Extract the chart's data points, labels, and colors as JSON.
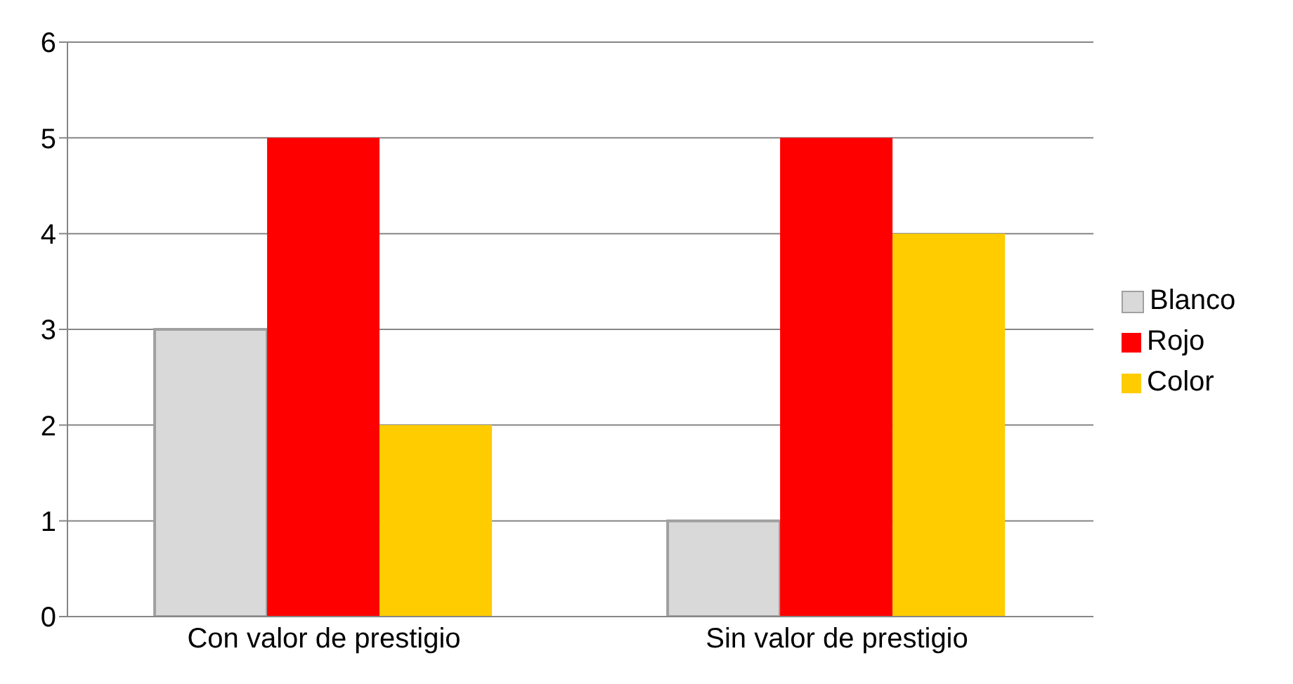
{
  "chart_data": {
    "type": "bar",
    "categories": [
      "Con valor de prestigio",
      "Sin valor de prestigio"
    ],
    "series": [
      {
        "name": "Blanco",
        "color": "#d9d9d9",
        "values": [
          3,
          1
        ]
      },
      {
        "name": "Rojo",
        "color": "#ff0000",
        "values": [
          5,
          5
        ]
      },
      {
        "name": "Color",
        "color": "#ffcc00",
        "values": [
          2,
          4
        ]
      }
    ],
    "ylim": [
      0,
      6
    ],
    "yticks": [
      0,
      1,
      2,
      3,
      4,
      5,
      6
    ],
    "grid": "y",
    "legend": "right"
  }
}
